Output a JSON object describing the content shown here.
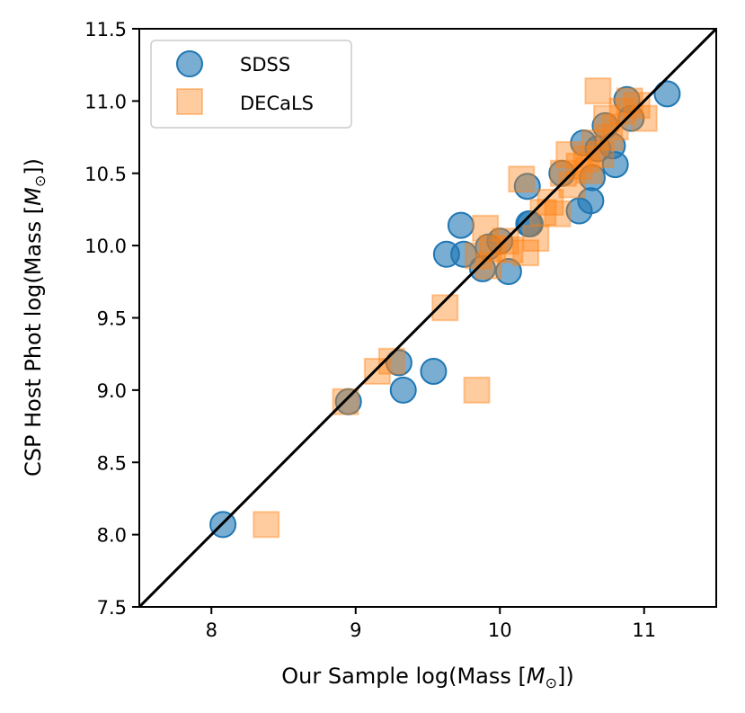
{
  "chart_data": {
    "type": "scatter",
    "title": "",
    "xlabel": "Our Sample log(Mass [",
    "xlabel_symbol": "M",
    "xlabel_subscript": "⊙",
    "xlabel_suffix": "])",
    "ylabel": "CSP Host Phot log(Mass [",
    "ylabel_symbol": "M",
    "ylabel_subscript": "⊙",
    "ylabel_suffix": "])",
    "xlim": [
      7.5,
      11.5
    ],
    "ylim": [
      7.5,
      11.5
    ],
    "xticks": [
      8,
      9,
      10,
      11
    ],
    "xtick_labels": [
      "8",
      "9",
      "10",
      "11"
    ],
    "yticks": [
      7.5,
      8.0,
      8.5,
      9.0,
      9.5,
      10.0,
      10.5,
      11.0,
      11.5
    ],
    "ytick_labels": [
      "7.5",
      "8.0",
      "8.5",
      "9.0",
      "9.5",
      "10.0",
      "10.5",
      "11.0",
      "11.5"
    ],
    "reference_line": {
      "x": [
        7.5,
        11.5
      ],
      "y": [
        7.5,
        11.5
      ],
      "color": "#000000"
    },
    "legend": {
      "position": "top-left"
    },
    "series": [
      {
        "name": "SDSS",
        "marker": "circle",
        "color": "#1f77b4",
        "points": [
          [
            8.08,
            8.07
          ],
          [
            8.95,
            8.92
          ],
          [
            9.3,
            9.19
          ],
          [
            9.33,
            9.0
          ],
          [
            9.54,
            9.13
          ],
          [
            9.63,
            9.94
          ],
          [
            9.73,
            10.14
          ],
          [
            9.75,
            9.94
          ],
          [
            9.88,
            9.84
          ],
          [
            9.92,
            9.99
          ],
          [
            10.0,
            10.03
          ],
          [
            10.06,
            9.82
          ],
          [
            10.2,
            10.15
          ],
          [
            10.19,
            10.41
          ],
          [
            10.21,
            10.15
          ],
          [
            10.43,
            10.5
          ],
          [
            10.55,
            10.24
          ],
          [
            10.58,
            10.71
          ],
          [
            10.63,
            10.31
          ],
          [
            10.64,
            10.47
          ],
          [
            10.68,
            10.67
          ],
          [
            10.73,
            10.83
          ],
          [
            10.78,
            10.69
          ],
          [
            10.8,
            10.56
          ],
          [
            10.88,
            11.01
          ],
          [
            10.91,
            10.88
          ],
          [
            11.16,
            11.05
          ]
        ]
      },
      {
        "name": "DECaLS",
        "marker": "square",
        "color": "#ff7f0e",
        "points": [
          [
            8.38,
            8.07
          ],
          [
            8.93,
            8.92
          ],
          [
            9.15,
            9.13
          ],
          [
            9.25,
            9.2
          ],
          [
            9.62,
            9.57
          ],
          [
            9.84,
            9.0
          ],
          [
            9.85,
            9.93
          ],
          [
            9.9,
            10.12
          ],
          [
            9.92,
            9.86
          ],
          [
            9.95,
            9.98
          ],
          [
            10.04,
            10.03
          ],
          [
            10.07,
            9.97
          ],
          [
            10.15,
            10.46
          ],
          [
            10.18,
            9.95
          ],
          [
            10.25,
            10.05
          ],
          [
            10.3,
            10.23
          ],
          [
            10.35,
            10.3
          ],
          [
            10.4,
            10.22
          ],
          [
            10.44,
            10.5
          ],
          [
            10.48,
            10.63
          ],
          [
            10.5,
            10.42
          ],
          [
            10.55,
            10.55
          ],
          [
            10.6,
            10.6
          ],
          [
            10.62,
            10.52
          ],
          [
            10.66,
            10.71
          ],
          [
            10.68,
            11.07
          ],
          [
            10.7,
            10.63
          ],
          [
            10.74,
            10.88
          ],
          [
            10.76,
            10.75
          ],
          [
            10.8,
            10.82
          ],
          [
            10.85,
            10.93
          ],
          [
            10.9,
            11.0
          ],
          [
            10.95,
            10.97
          ],
          [
            11.0,
            10.88
          ]
        ]
      }
    ]
  }
}
